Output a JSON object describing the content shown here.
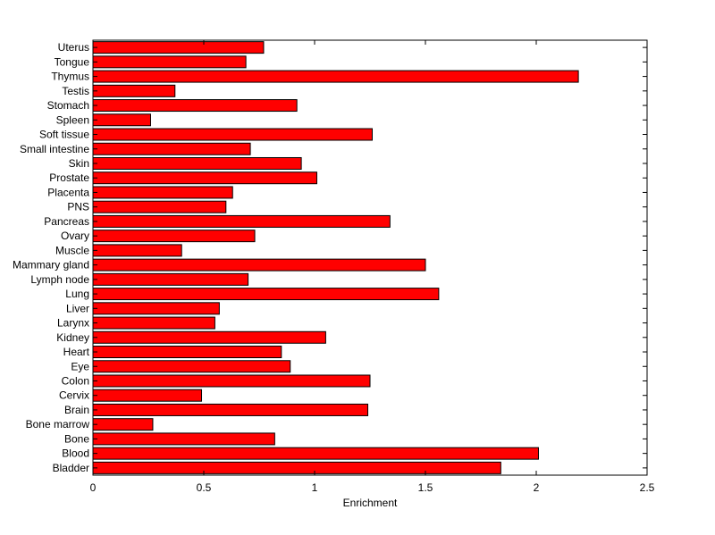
{
  "chart_data": {
    "type": "bar",
    "orientation": "horizontal",
    "title": "",
    "xlabel": "Enrichment",
    "ylabel": "",
    "xlim": [
      0,
      2.5
    ],
    "xticks": [
      "0",
      "0.5",
      "1",
      "1.5",
      "2",
      "2.5"
    ],
    "grid": false,
    "bar_color": "#ff0000",
    "edge_color": "#000000",
    "categories": [
      "Uterus",
      "Tongue",
      "Thymus",
      "Testis",
      "Stomach",
      "Spleen",
      "Soft tissue",
      "Small intestine",
      "Skin",
      "Prostate",
      "Placenta",
      "PNS",
      "Pancreas",
      "Ovary",
      "Muscle",
      "Mammary gland",
      "Lymph node",
      "Lung",
      "Liver",
      "Larynx",
      "Kidney",
      "Heart",
      "Eye",
      "Colon",
      "Cervix",
      "Brain",
      "Bone marrow",
      "Bone",
      "Blood",
      "Bladder"
    ],
    "values": [
      0.77,
      0.69,
      2.19,
      0.37,
      0.92,
      0.26,
      1.26,
      0.71,
      0.94,
      1.01,
      0.63,
      0.6,
      1.34,
      0.73,
      0.4,
      1.5,
      0.7,
      1.56,
      0.57,
      0.55,
      1.05,
      0.85,
      0.89,
      1.25,
      0.49,
      1.24,
      0.27,
      0.82,
      2.01,
      1.84
    ]
  }
}
